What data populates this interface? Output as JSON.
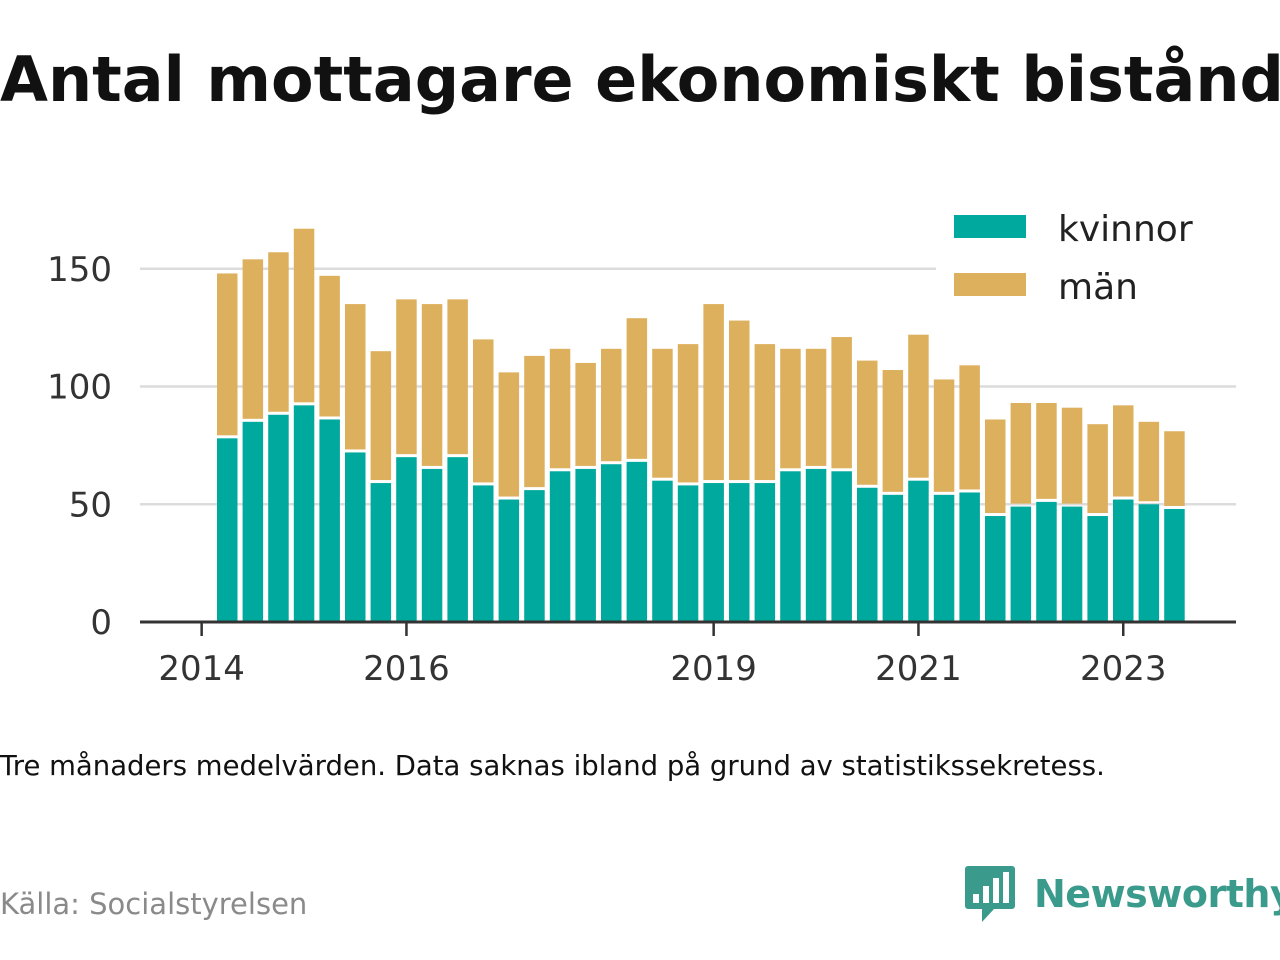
{
  "title": "Antal mottagare ekonomiskt bistånd",
  "caption": "Tre månaders medelvärden. Data saknas ibland på grund av statistikssekretess.",
  "source": "Källa: Socialstyrelsen",
  "brand": {
    "name": "Newsworthy",
    "icon": "newsworthy-logo-icon",
    "color": "#3a9a8c"
  },
  "chart_data": {
    "type": "bar",
    "stacked": true,
    "x_ticks": [
      "2014",
      "2016",
      "2019",
      "2021",
      "2023"
    ],
    "x_tick_index": [
      -1,
      7,
      19,
      27,
      35
    ],
    "y_ticks": [
      0,
      50,
      100,
      150
    ],
    "ylim": [
      0,
      170
    ],
    "grid": true,
    "legend_position": "top-right",
    "series": [
      {
        "name": "kvinnor",
        "color": "#00a99d",
        "values": [
          78,
          85,
          88,
          92,
          86,
          72,
          59,
          70,
          65,
          70,
          58,
          52,
          56,
          64,
          65,
          67,
          68,
          60,
          58,
          59,
          59,
          59,
          64,
          65,
          64,
          57,
          54,
          60,
          54,
          55,
          45,
          49,
          51,
          49,
          45,
          52,
          50,
          48
        ]
      },
      {
        "name": "män",
        "color": "#ddb05e",
        "values": [
          70,
          69,
          69,
          75,
          61,
          63,
          56,
          67,
          70,
          67,
          62,
          54,
          57,
          52,
          45,
          49,
          61,
          56,
          60,
          76,
          69,
          59,
          52,
          51,
          57,
          54,
          53,
          62,
          49,
          54,
          41,
          44,
          42,
          42,
          39,
          40,
          35,
          33
        ]
      }
    ]
  }
}
